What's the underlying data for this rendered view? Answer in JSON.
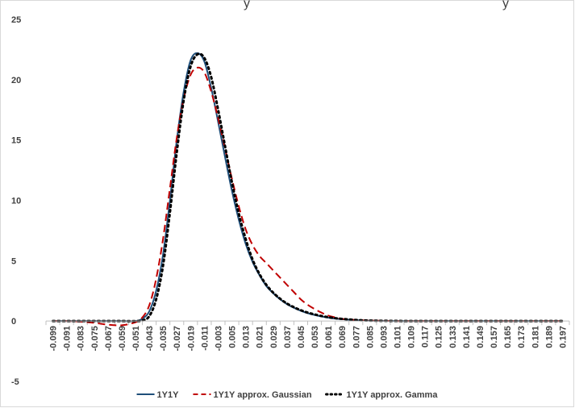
{
  "chart_data": {
    "type": "line",
    "title_fragments": [
      "y",
      "y"
    ],
    "xlabel": "",
    "ylabel": "",
    "ylim": [
      -5,
      25
    ],
    "yticks": [
      -5,
      0,
      5,
      10,
      15,
      20,
      25
    ],
    "ytick_labels": [
      "-5",
      "0",
      "5",
      "10",
      "15",
      "20",
      "25"
    ],
    "grid": false,
    "legend_position": "bottom",
    "xtick_labels": [
      "-0.099",
      "-0.091",
      "-0.083",
      "-0.075",
      "-0.067",
      "-0.059",
      "-0.051",
      "-0.043",
      "-0.035",
      "-0.027",
      "-0.019",
      "-0.011",
      "-0.003",
      "0.005",
      "0.013",
      "0.021",
      "0.029",
      "0.037",
      "0.045",
      "0.053",
      "0.061",
      "0.069",
      "0.077",
      "0.085",
      "0.093",
      "0.101",
      "0.109",
      "0.117",
      "0.125",
      "0.133",
      "0.141",
      "0.149",
      "0.157",
      "0.165",
      "0.173",
      "0.181",
      "0.189",
      "0.197"
    ],
    "x": [
      -0.099,
      -0.091,
      -0.083,
      -0.075,
      -0.067,
      -0.059,
      -0.051,
      -0.047,
      -0.043,
      -0.039,
      -0.035,
      -0.031,
      -0.027,
      -0.023,
      -0.019,
      -0.015,
      -0.011,
      -0.007,
      -0.003,
      0.001,
      0.005,
      0.009,
      0.013,
      0.017,
      0.021,
      0.025,
      0.029,
      0.033,
      0.037,
      0.041,
      0.045,
      0.049,
      0.053,
      0.057,
      0.061,
      0.065,
      0.069,
      0.077,
      0.085,
      0.093,
      0.101,
      0.109,
      0.125,
      0.141,
      0.157,
      0.173,
      0.189,
      0.197
    ],
    "series": [
      {
        "name": "1Y1Y",
        "color": "#1f4e79",
        "dash": "solid",
        "values": [
          0,
          0,
          0,
          0,
          0,
          0,
          0,
          0.2,
          0.8,
          2.5,
          5.5,
          10.0,
          15.0,
          19.0,
          21.6,
          22.2,
          21.5,
          19.3,
          16.5,
          13.6,
          10.8,
          8.4,
          6.4,
          4.9,
          3.8,
          2.9,
          2.3,
          1.8,
          1.4,
          1.1,
          0.85,
          0.65,
          0.5,
          0.38,
          0.28,
          0.2,
          0.15,
          0.07,
          0.03,
          0.01,
          0,
          0,
          0,
          0,
          0,
          0,
          0,
          0
        ]
      },
      {
        "name": "1Y1Y approx. Gaussian",
        "color": "#c00000",
        "dash": "dashed",
        "values": [
          0,
          0,
          -0.05,
          -0.15,
          -0.3,
          -0.35,
          -0.1,
          0.3,
          1.3,
          3.5,
          6.8,
          11.0,
          15.2,
          18.4,
          20.4,
          21.0,
          20.6,
          19.0,
          16.8,
          14.3,
          11.8,
          9.5,
          7.6,
          6.3,
          5.4,
          4.8,
          4.2,
          3.6,
          3.0,
          2.4,
          1.8,
          1.35,
          1.0,
          0.7,
          0.45,
          0.3,
          0.18,
          0.08,
          0.04,
          0.02,
          0,
          0,
          0,
          0,
          0,
          0,
          0,
          0
        ]
      },
      {
        "name": "1Y1Y approx. Gamma",
        "color": "#000000",
        "dash": "dotted",
        "values": [
          0,
          0,
          0,
          0,
          0,
          0,
          0,
          0.05,
          0.4,
          1.8,
          4.6,
          9.0,
          14.0,
          18.3,
          21.1,
          22.1,
          21.8,
          20.2,
          17.5,
          14.5,
          11.5,
          8.9,
          6.8,
          5.1,
          3.9,
          3.0,
          2.35,
          1.85,
          1.45,
          1.15,
          0.9,
          0.7,
          0.55,
          0.42,
          0.32,
          0.24,
          0.18,
          0.09,
          0.04,
          0.02,
          0.01,
          0,
          0,
          0,
          0,
          0,
          0,
          0
        ]
      }
    ]
  }
}
